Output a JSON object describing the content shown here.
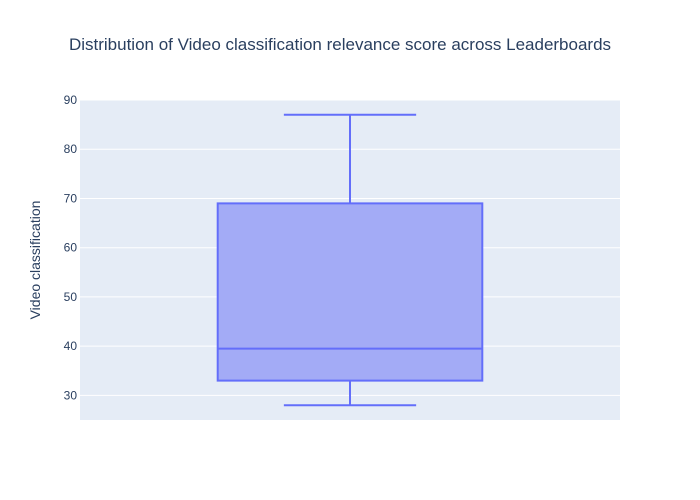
{
  "chart_data": {
    "type": "box",
    "title": "Distribution of Video classification relevance score across Leaderboards",
    "xlabel": "",
    "ylabel": "Video classification",
    "ylim": [
      25,
      90
    ],
    "yticks": [
      30,
      40,
      50,
      60,
      70,
      80,
      90
    ],
    "grid": true,
    "series": [
      {
        "min": 28,
        "q1": 33,
        "median": 39.5,
        "q3": 69,
        "max": 87
      }
    ],
    "colors": {
      "box_fill": "#a3abf6",
      "box_line": "#636efa",
      "plot_bg": "#e5ecf6",
      "grid": "#ffffff",
      "text": "#2a3f5f"
    }
  }
}
